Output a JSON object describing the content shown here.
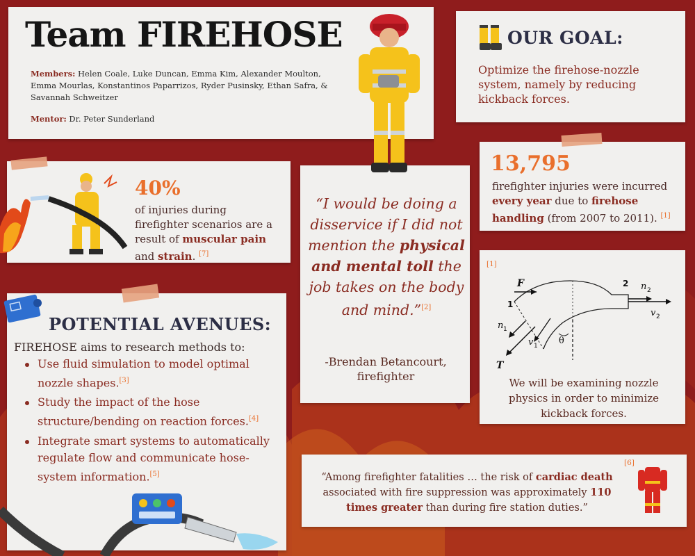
{
  "header": {
    "title": "Team FIREHOSE",
    "members_label": "Members:",
    "members": "Helen Coale, Luke Duncan, Emma Kim, Alexander Moulton, Emma Mourlas, Konstantinos Paparrizos, Ryder Pusinsky, Ethan Safra, & Savannah Schweitzer",
    "mentor_label": "Mentor:",
    "mentor": "Dr. Peter Sunderland"
  },
  "goal": {
    "title": "OUR GOAL:",
    "text": "Optimize the firehose-nozzle system, namely by reducing kickback forces."
  },
  "injuries_stat": {
    "value": "13,795",
    "text_1": "firefighter injuries were incurred ",
    "bold_1": "every year",
    "text_2": " due to ",
    "bold_2": "firehose handling",
    "text_3": " (from 2007 to 2011). ",
    "ref": "[1]"
  },
  "muscular_stat": {
    "value": "40%",
    "text_1": "of injuries during firefighter scenarios are a result of ",
    "bold_1": "muscular pain",
    "text_2": " and ",
    "bold_2": "strain",
    "text_3": ". ",
    "ref": "[7]"
  },
  "quote": {
    "open": "“I would be doing a disservice if I did not mention the ",
    "bold": "physical and mental toll",
    "close": " the job takes on the body and mind.”",
    "ref": "[2]",
    "author": "-Brendan Betancourt, firefighter"
  },
  "avenues": {
    "title": "POTENTIAL AVENUES:",
    "intro": "FIREHOSE aims to research methods to:",
    "items": [
      {
        "text": "Use fluid simulation to model optimal nozzle shapes.",
        "ref": "[3]"
      },
      {
        "text": "Study the impact of the hose structure/bending on reaction forces.",
        "ref": "[4]"
      },
      {
        "text": "Integrate smart systems to automatically regulate flow and communicate hose-system information.",
        "ref": "[5]"
      }
    ]
  },
  "nozzle_diagram": {
    "ref": "[1]",
    "labels": {
      "F": "F",
      "T": "T",
      "n1": "n",
      "n1_sub": "1",
      "v1": "v",
      "v1_sub": "1",
      "n2": "n",
      "n2_sub": "2",
      "v2": "v",
      "v2_sub": "2",
      "theta": "θ",
      "point1": "1",
      "point2": "2"
    },
    "caption": "We will be examining nozzle physics in order to minimize kickback forces."
  },
  "cardiac_quote": {
    "ref": "[6]",
    "text_1": "“Among firefighter fatalities … the risk of ",
    "bold_1": "cardiac death",
    "text_2": " associated with fire suppression was approximately ",
    "bold_2": "110 times greater",
    "text_3": " than during fire station duties.”"
  },
  "colors": {
    "background": "#8f1c1c",
    "paper": "#f1f0ee",
    "accent_orange": "#e96f2c",
    "accent_red": "#8a2c22",
    "navy": "#2c2e45"
  }
}
